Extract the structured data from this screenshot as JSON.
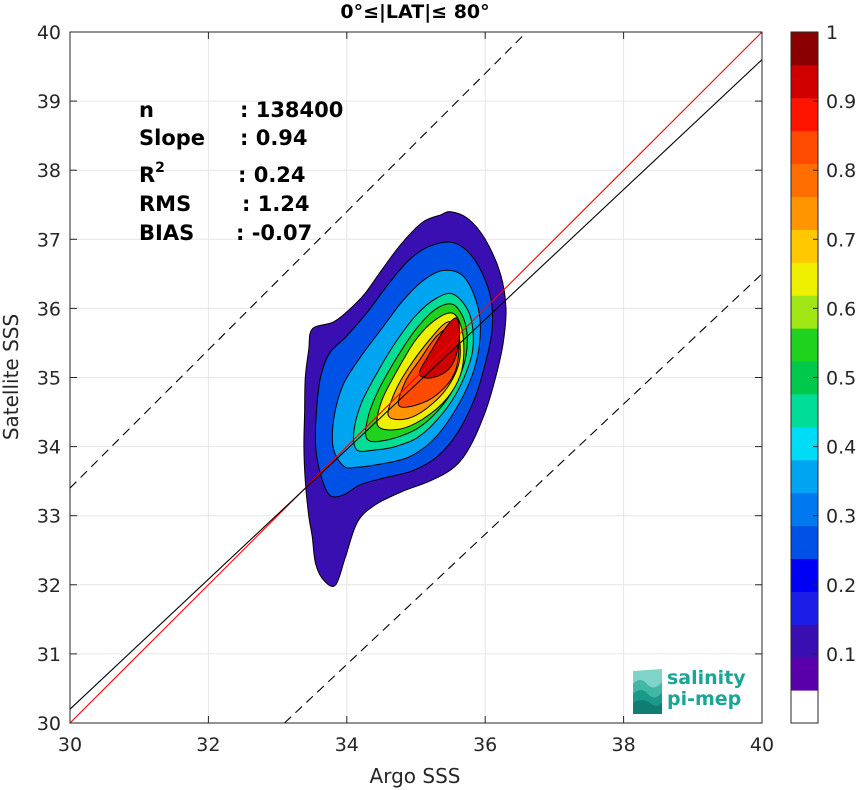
{
  "chart_data": {
    "type": "contour",
    "title": "0°≤|LAT|≤ 80°",
    "xlabel": "Argo SSS",
    "ylabel": "Satellite SSS",
    "xlim": [
      30,
      40
    ],
    "ylim": [
      30,
      40
    ],
    "xticks": [
      "30",
      "32",
      "34",
      "36",
      "38",
      "40"
    ],
    "yticks": [
      "30",
      "31",
      "32",
      "33",
      "34",
      "35",
      "36",
      "37",
      "38",
      "39",
      "40"
    ],
    "grid": true,
    "lines": [
      {
        "name": "identity",
        "color": "#ff0000",
        "style": "solid",
        "points": [
          [
            30,
            30
          ],
          [
            40,
            40
          ]
        ]
      },
      {
        "name": "regression",
        "color": "#000000",
        "style": "solid",
        "points": [
          [
            30,
            30.2
          ],
          [
            40,
            39.6
          ]
        ]
      },
      {
        "name": "upper-bound",
        "color": "#000000",
        "style": "dashed",
        "points": [
          [
            30,
            33.4
          ],
          [
            37,
            40.4
          ]
        ]
      },
      {
        "name": "lower-bound",
        "color": "#000000",
        "style": "dashed",
        "points": [
          [
            33.1,
            30
          ],
          [
            40,
            36.5
          ]
        ]
      }
    ],
    "contours": [
      {
        "level": 0.05,
        "color": "#3a0fb2",
        "points": [
          [
            33.84,
            32.0
          ],
          [
            33.68,
            32.05
          ],
          [
            33.55,
            32.3
          ],
          [
            33.5,
            32.7
          ],
          [
            33.45,
            33.0
          ],
          [
            33.4,
            33.5
          ],
          [
            33.38,
            34.0
          ],
          [
            33.39,
            34.5
          ],
          [
            33.4,
            35.0
          ],
          [
            33.45,
            35.4
          ],
          [
            33.5,
            35.7
          ],
          [
            33.8,
            35.8
          ],
          [
            34.0,
            35.95
          ],
          [
            34.25,
            36.2
          ],
          [
            34.5,
            36.55
          ],
          [
            34.8,
            36.95
          ],
          [
            35.1,
            37.25
          ],
          [
            35.35,
            37.35
          ],
          [
            35.5,
            37.4
          ],
          [
            35.75,
            37.3
          ],
          [
            36.0,
            37.0
          ],
          [
            36.22,
            36.5
          ],
          [
            36.3,
            36.0
          ],
          [
            36.26,
            35.5
          ],
          [
            36.15,
            35.0
          ],
          [
            36.0,
            34.5
          ],
          [
            35.78,
            34.0
          ],
          [
            35.55,
            33.7
          ],
          [
            35.2,
            33.5
          ],
          [
            34.8,
            33.35
          ],
          [
            34.4,
            33.15
          ],
          [
            34.15,
            32.9
          ],
          [
            33.98,
            32.4
          ]
        ]
      },
      {
        "level": 0.2,
        "color": "#0052e6",
        "points": [
          [
            33.75,
            33.3
          ],
          [
            33.62,
            33.6
          ],
          [
            33.55,
            34.0
          ],
          [
            33.56,
            34.5
          ],
          [
            33.62,
            35.0
          ],
          [
            33.75,
            35.35
          ],
          [
            34.0,
            35.6
          ],
          [
            34.3,
            35.95
          ],
          [
            34.6,
            36.35
          ],
          [
            34.9,
            36.7
          ],
          [
            35.2,
            36.9
          ],
          [
            35.55,
            36.95
          ],
          [
            35.85,
            36.7
          ],
          [
            36.07,
            36.2
          ],
          [
            36.1,
            35.7
          ],
          [
            36.0,
            35.2
          ],
          [
            35.85,
            34.7
          ],
          [
            35.6,
            34.2
          ],
          [
            35.3,
            33.85
          ],
          [
            34.95,
            33.65
          ],
          [
            34.55,
            33.55
          ],
          [
            34.2,
            33.45
          ],
          [
            33.95,
            33.3
          ]
        ]
      },
      {
        "level": 0.3,
        "color": "#00a5f2",
        "points": [
          [
            33.95,
            33.72
          ],
          [
            33.8,
            34.0
          ],
          [
            33.82,
            34.45
          ],
          [
            33.95,
            34.9
          ],
          [
            34.2,
            35.3
          ],
          [
            34.5,
            35.7
          ],
          [
            34.8,
            36.1
          ],
          [
            35.1,
            36.4
          ],
          [
            35.4,
            36.55
          ],
          [
            35.7,
            36.45
          ],
          [
            35.9,
            36.0
          ],
          [
            35.92,
            35.5
          ],
          [
            35.8,
            35.0
          ],
          [
            35.55,
            34.5
          ],
          [
            35.25,
            34.1
          ],
          [
            34.9,
            33.85
          ],
          [
            34.5,
            33.75
          ],
          [
            34.15,
            33.7
          ]
        ]
      },
      {
        "level": 0.4,
        "color": "#00dd96",
        "points": [
          [
            34.15,
            33.95
          ],
          [
            34.1,
            34.2
          ],
          [
            34.2,
            34.6
          ],
          [
            34.4,
            35.0
          ],
          [
            34.7,
            35.5
          ],
          [
            35.0,
            35.9
          ],
          [
            35.3,
            36.15
          ],
          [
            35.55,
            36.2
          ],
          [
            35.78,
            35.9
          ],
          [
            35.82,
            35.4
          ],
          [
            35.65,
            34.9
          ],
          [
            35.4,
            34.5
          ],
          [
            35.05,
            34.15
          ],
          [
            34.7,
            34.0
          ],
          [
            34.4,
            33.95
          ]
        ]
      },
      {
        "level": 0.5,
        "color": "#1ed21e",
        "points": [
          [
            34.3,
            34.1
          ],
          [
            34.3,
            34.4
          ],
          [
            34.45,
            34.8
          ],
          [
            34.7,
            35.25
          ],
          [
            35.0,
            35.7
          ],
          [
            35.3,
            36.0
          ],
          [
            35.55,
            36.05
          ],
          [
            35.72,
            35.75
          ],
          [
            35.72,
            35.3
          ],
          [
            35.55,
            34.85
          ],
          [
            35.3,
            34.5
          ],
          [
            35.0,
            34.25
          ],
          [
            34.6,
            34.1
          ]
        ]
      },
      {
        "level": 0.6,
        "color": "#eef000",
        "points": [
          [
            34.45,
            34.3
          ],
          [
            34.5,
            34.65
          ],
          [
            34.7,
            35.05
          ],
          [
            35.0,
            35.55
          ],
          [
            35.3,
            35.85
          ],
          [
            35.55,
            35.92
          ],
          [
            35.68,
            35.6
          ],
          [
            35.66,
            35.1
          ],
          [
            35.45,
            34.7
          ],
          [
            35.1,
            34.4
          ],
          [
            34.75,
            34.25
          ]
        ]
      },
      {
        "level": 0.7,
        "color": "#ff9500",
        "points": [
          [
            34.6,
            34.45
          ],
          [
            34.7,
            34.8
          ],
          [
            34.9,
            35.15
          ],
          [
            35.2,
            35.55
          ],
          [
            35.45,
            35.8
          ],
          [
            35.6,
            35.7
          ],
          [
            35.63,
            35.25
          ],
          [
            35.45,
            34.85
          ],
          [
            35.15,
            34.55
          ],
          [
            34.85,
            34.4
          ]
        ]
      },
      {
        "level": 0.8,
        "color": "#ff4b00",
        "points": [
          [
            34.75,
            34.6
          ],
          [
            34.85,
            34.95
          ],
          [
            35.05,
            35.25
          ],
          [
            35.3,
            35.6
          ],
          [
            35.52,
            35.72
          ],
          [
            35.62,
            35.45
          ],
          [
            35.55,
            35.05
          ],
          [
            35.3,
            34.75
          ],
          [
            35.0,
            34.6
          ]
        ]
      },
      {
        "level": 0.9,
        "color": "#d10000",
        "points": [
          [
            35.05,
            35.05
          ],
          [
            35.2,
            35.35
          ],
          [
            35.45,
            35.75
          ],
          [
            35.6,
            35.85
          ],
          [
            35.62,
            35.5
          ],
          [
            35.5,
            35.15
          ],
          [
            35.25,
            35.0
          ]
        ]
      }
    ],
    "stats": [
      {
        "label": "n",
        "value": ": 138400"
      },
      {
        "label": "Slope",
        "value": ": 0.94"
      },
      {
        "label": "R",
        "sup": "2",
        "value": ": 0.24"
      },
      {
        "label": "RMS",
        "value": ": 1.24"
      },
      {
        "label": "BIAS",
        "value": ": -0.07"
      }
    ],
    "colorbar": {
      "min": 0,
      "max": 1,
      "ticks": [
        "0.1",
        "0.2",
        "0.3",
        "0.4",
        "0.5",
        "0.6",
        "0.7",
        "0.8",
        "0.9",
        "1"
      ],
      "colors": [
        "#ffffff",
        "#5a00aa",
        "#3a0fb2",
        "#1a1ee6",
        "#0000f5",
        "#0052e6",
        "#0078f0",
        "#00a5f2",
        "#00dcf5",
        "#00dd96",
        "#00c84b",
        "#1ed21e",
        "#a0e614",
        "#eef000",
        "#ffc800",
        "#ff9500",
        "#ff6e00",
        "#ff4b00",
        "#ff1400",
        "#d10000",
        "#8a0000"
      ]
    }
  },
  "logo": {
    "line1": "salinity",
    "line2": "pi-mep"
  }
}
